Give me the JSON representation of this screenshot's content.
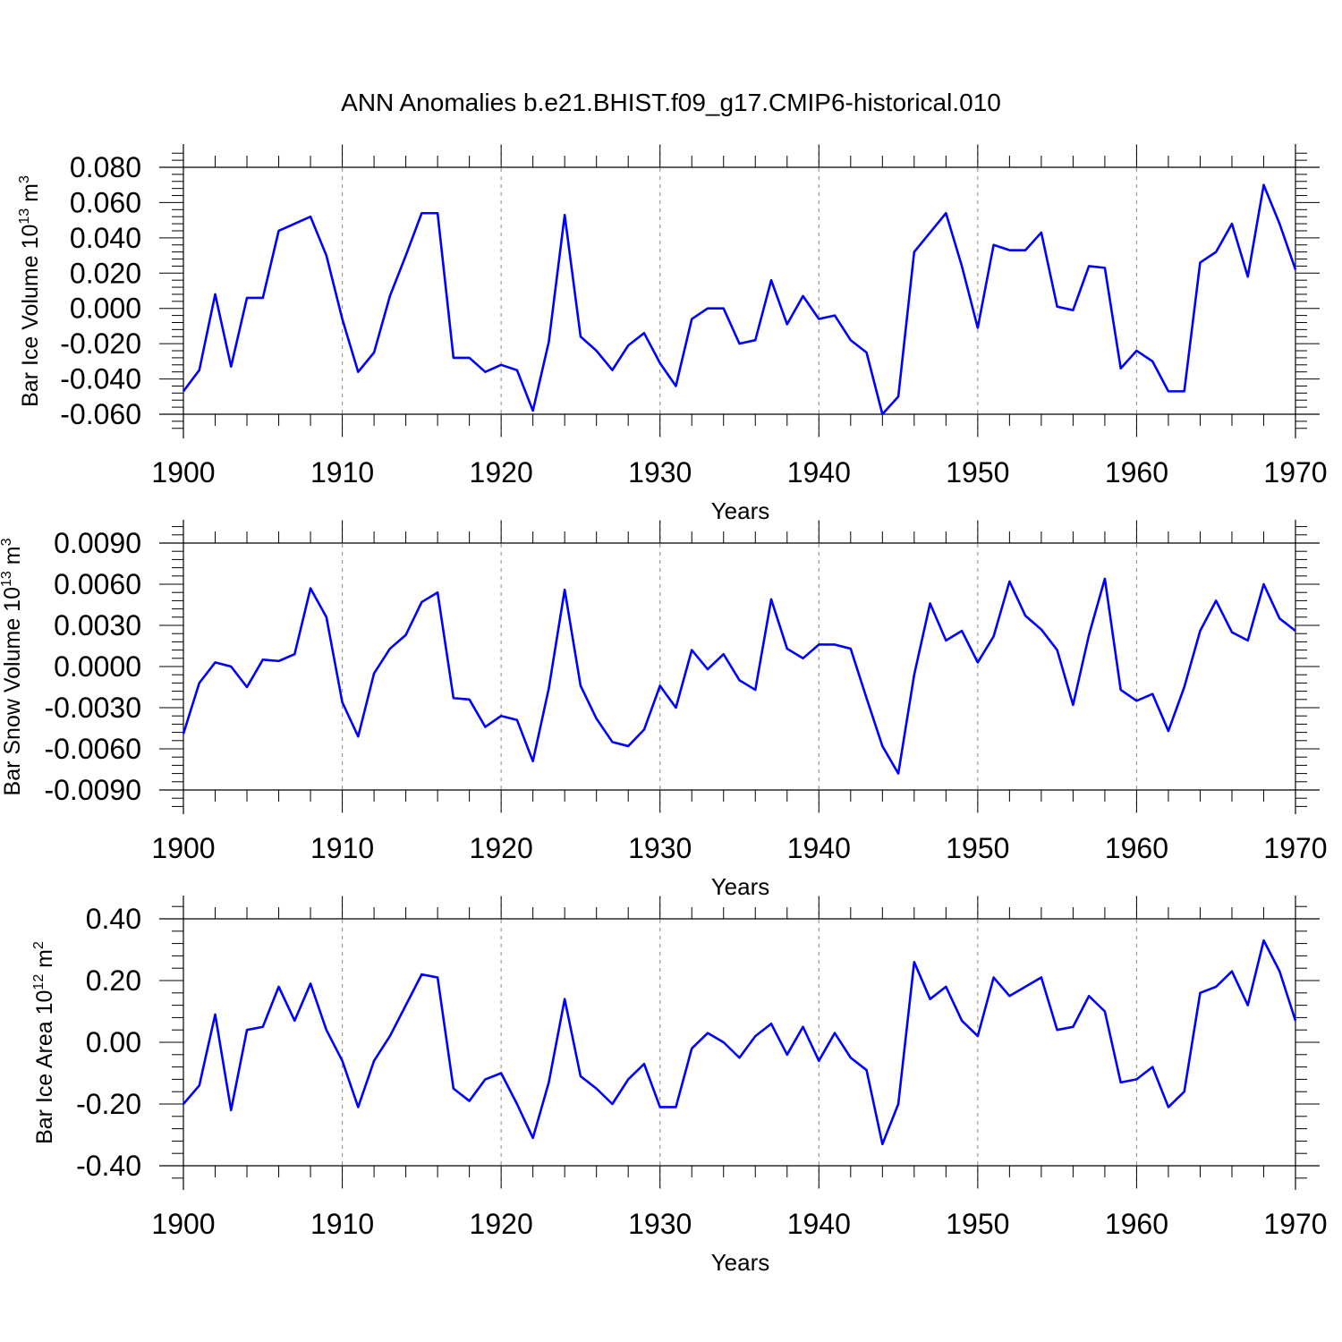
{
  "title": "ANN Anomalies b.e21.BHIST.f09_g17.CMIP6-historical.010",
  "line_color": "#0000ff",
  "grid_color": "#999999",
  "chart_data": [
    {
      "type": "line",
      "xlabel": "Years",
      "ylabel": {
        "prefix": "Bar Ice Volume 10",
        "exp": "13",
        "unit": " m",
        "unit_exp": "3"
      },
      "xlim": [
        1900,
        1970
      ],
      "ylim": [
        -0.06,
        0.08
      ],
      "xticks": [
        1900,
        1910,
        1920,
        1930,
        1940,
        1950,
        1960,
        1970
      ],
      "xtick_labels": [
        "1900",
        "1910",
        "1920",
        "1930",
        "1940",
        "1950",
        "1960",
        "1970"
      ],
      "yticks": [
        -0.06,
        -0.04,
        -0.02,
        0.0,
        0.02,
        0.04,
        0.06,
        0.08
      ],
      "ytick_labels": [
        "-0.060",
        "-0.040",
        "-0.020",
        "0.000",
        "0.020",
        "0.040",
        "0.060",
        "0.080"
      ],
      "grid": "vertical dashed at labeled years",
      "series": [
        {
          "x_start": 1900,
          "values": [
            -0.047,
            -0.035,
            0.008,
            -0.033,
            0.006,
            0.006,
            0.044,
            0.048,
            0.052,
            0.03,
            -0.006,
            -0.036,
            -0.025,
            0.007,
            0.03,
            0.054,
            0.054,
            -0.028,
            -0.028,
            -0.036,
            -0.032,
            -0.035,
            -0.058,
            -0.019,
            0.053,
            -0.016,
            -0.024,
            -0.035,
            -0.021,
            -0.014,
            -0.031,
            -0.044,
            -0.006,
            0.0,
            0.0,
            -0.02,
            -0.018,
            0.016,
            -0.009,
            0.007,
            -0.006,
            -0.004,
            -0.018,
            -0.025,
            -0.06,
            -0.05,
            0.032,
            0.043,
            0.054,
            0.024,
            -0.011,
            0.036,
            0.033,
            0.033,
            0.043,
            0.001,
            -0.001,
            0.024,
            0.023,
            -0.034,
            -0.024,
            -0.03,
            -0.047,
            -0.047,
            0.026,
            0.032,
            0.048,
            0.018,
            0.07,
            0.048,
            0.022
          ]
        }
      ]
    },
    {
      "type": "line",
      "xlabel": "Years",
      "ylabel": {
        "prefix": "Bar Snow Volume 10",
        "exp": "13",
        "unit": " m",
        "unit_exp": "3"
      },
      "xlim": [
        1900,
        1970
      ],
      "ylim": [
        -0.009,
        0.009
      ],
      "xticks": [
        1900,
        1910,
        1920,
        1930,
        1940,
        1950,
        1960,
        1970
      ],
      "xtick_labels": [
        "1900",
        "1910",
        "1920",
        "1930",
        "1940",
        "1950",
        "1960",
        "1970"
      ],
      "yticks": [
        -0.009,
        -0.006,
        -0.003,
        0.0,
        0.003,
        0.006,
        0.009
      ],
      "ytick_labels": [
        "-0.0090",
        "-0.0060",
        "-0.0030",
        "0.0000",
        "0.0030",
        "0.0060",
        "0.0090"
      ],
      "grid": "vertical dashed at labeled years",
      "series": [
        {
          "x_start": 1900,
          "values": [
            -0.0049,
            -0.0012,
            0.0003,
            0.0,
            -0.0015,
            0.0005,
            0.0004,
            0.0009,
            0.0057,
            0.0036,
            -0.0026,
            -0.0051,
            -0.0005,
            0.0013,
            0.0023,
            0.0047,
            0.0054,
            -0.0023,
            -0.0024,
            -0.0044,
            -0.0036,
            -0.0039,
            -0.0069,
            -0.0016,
            0.0056,
            -0.0014,
            -0.0038,
            -0.0055,
            -0.0058,
            -0.0046,
            -0.0014,
            -0.003,
            0.0012,
            -0.0002,
            0.0009,
            -0.001,
            -0.0017,
            0.0049,
            0.0013,
            0.0006,
            0.0016,
            0.0016,
            0.0013,
            -0.0023,
            -0.0058,
            -0.0078,
            -0.0006,
            0.0046,
            0.0019,
            0.0026,
            0.0003,
            0.0022,
            0.0062,
            0.0037,
            0.0027,
            0.0012,
            -0.0028,
            0.0023,
            0.0064,
            -0.0017,
            -0.0025,
            -0.002,
            -0.0047,
            -0.0015,
            0.0026,
            0.0048,
            0.0025,
            0.0019,
            0.006,
            0.0035,
            0.0026
          ]
        }
      ]
    },
    {
      "type": "line",
      "xlabel": "Years",
      "ylabel": {
        "prefix": "Bar Ice Area 10",
        "exp": "12",
        "unit": " m",
        "unit_exp": "2"
      },
      "xlim": [
        1900,
        1970
      ],
      "ylim": [
        -0.4,
        0.4
      ],
      "xticks": [
        1900,
        1910,
        1920,
        1930,
        1940,
        1950,
        1960,
        1970
      ],
      "xtick_labels": [
        "1900",
        "1910",
        "1920",
        "1930",
        "1940",
        "1950",
        "1960",
        "1970"
      ],
      "yticks": [
        -0.4,
        -0.2,
        0.0,
        0.2,
        0.4
      ],
      "ytick_labels": [
        "-0.40",
        "-0.20",
        "0.00",
        "0.20",
        "0.40"
      ],
      "grid": "vertical dashed at labeled years",
      "series": [
        {
          "x_start": 1900,
          "values": [
            -0.2,
            -0.14,
            0.09,
            -0.22,
            0.04,
            0.05,
            0.18,
            0.07,
            0.19,
            0.04,
            -0.06,
            -0.21,
            -0.06,
            0.02,
            0.12,
            0.22,
            0.21,
            -0.15,
            -0.19,
            -0.12,
            -0.1,
            -0.2,
            -0.31,
            -0.13,
            0.14,
            -0.11,
            -0.15,
            -0.2,
            -0.12,
            -0.07,
            -0.21,
            -0.21,
            -0.02,
            0.03,
            0.0,
            -0.05,
            0.02,
            0.06,
            -0.04,
            0.05,
            -0.06,
            0.03,
            -0.05,
            -0.09,
            -0.33,
            -0.2,
            0.26,
            0.14,
            0.18,
            0.07,
            0.02,
            0.21,
            0.15,
            0.18,
            0.21,
            0.04,
            0.05,
            0.15,
            0.1,
            -0.13,
            -0.12,
            -0.08,
            -0.21,
            -0.16,
            0.16,
            0.18,
            0.23,
            0.12,
            0.33,
            0.23,
            0.07
          ]
        }
      ]
    }
  ]
}
